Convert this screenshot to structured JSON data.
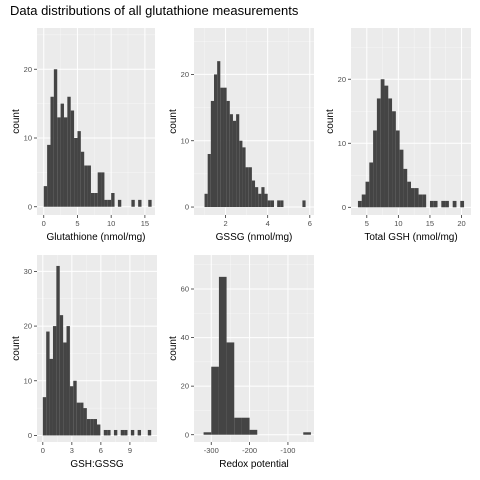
{
  "title": "Data distributions of all glutathione measurements",
  "colors": {
    "panel_bg": "#ebebeb",
    "grid_major": "#ffffff",
    "bar": "#444444",
    "tick_text": "#4d4d4d"
  },
  "chart_data": [
    {
      "type": "bar",
      "subtype": "histogram",
      "xlabel": "Glutathione (nmol/mg)",
      "ylabel": "count",
      "xlim": [
        -1,
        16.5
      ],
      "ylim": [
        -1.2,
        26
      ],
      "x_ticks": [
        0,
        5,
        10,
        15
      ],
      "y_ticks": [
        0,
        10,
        20
      ],
      "bin_width": 0.5,
      "bin_starts": [
        0,
        0.5,
        1,
        1.5,
        2,
        2.5,
        3,
        3.5,
        4,
        4.5,
        5,
        5.5,
        6,
        6.5,
        7,
        7.5,
        8,
        8.5,
        9,
        9.5,
        10,
        10.5,
        11,
        11.5,
        12,
        12.5,
        13,
        13.5,
        14,
        14.5,
        15,
        15.5
      ],
      "counts": [
        3,
        9,
        16,
        20,
        13,
        15,
        13,
        16,
        14,
        10,
        11,
        8,
        6,
        6,
        2,
        2,
        5,
        5,
        1,
        1,
        2,
        0,
        1,
        0,
        0,
        0,
        1,
        0,
        1,
        0,
        0,
        1
      ]
    },
    {
      "type": "bar",
      "subtype": "histogram",
      "xlabel": "GSSG (nmol/mg)",
      "ylabel": "count",
      "xlim": [
        0.5,
        6.2
      ],
      "ylim": [
        -1.2,
        27
      ],
      "x_ticks": [
        2,
        4,
        6
      ],
      "y_ticks": [
        0,
        10,
        20
      ],
      "bin_width": 0.15,
      "bin_starts": [
        1.0,
        1.15,
        1.3,
        1.45,
        1.6,
        1.75,
        1.9,
        2.05,
        2.2,
        2.35,
        2.5,
        2.65,
        2.8,
        2.95,
        3.1,
        3.25,
        3.4,
        3.55,
        3.7,
        3.85,
        4.0,
        4.15,
        4.3,
        4.45,
        4.6,
        4.75,
        4.9,
        5.05,
        5.2,
        5.35,
        5.5,
        5.65
      ],
      "counts": [
        2,
        8,
        16,
        20,
        22,
        18,
        18,
        16,
        14,
        13,
        14,
        10,
        9,
        6,
        6,
        4,
        3,
        2,
        3,
        2,
        1,
        1,
        0,
        1,
        1,
        0,
        0,
        0,
        0,
        0,
        0,
        1
      ]
    },
    {
      "type": "bar",
      "subtype": "histogram",
      "xlabel": "Total GSH (nmol/mg)",
      "ylabel": "count",
      "xlim": [
        2.5,
        21.5
      ],
      "ylim": [
        -1.2,
        28
      ],
      "x_ticks": [
        5,
        10,
        15,
        20
      ],
      "y_ticks": [
        0,
        10,
        20
      ],
      "bin_width": 0.6,
      "bin_starts": [
        3.6,
        4.2,
        4.8,
        5.4,
        6.0,
        6.6,
        7.2,
        7.8,
        8.4,
        9.0,
        9.6,
        10.2,
        10.8,
        11.4,
        12.0,
        12.6,
        13.2,
        13.8,
        14.4,
        15.0,
        15.6,
        16.2,
        16.8,
        17.4,
        18.0,
        18.6,
        19.2,
        19.8,
        20.4
      ],
      "counts": [
        1,
        2,
        4,
        7,
        12,
        17,
        20,
        19,
        17,
        15,
        12,
        9,
        6,
        4,
        3,
        3,
        2,
        2,
        0,
        1,
        1,
        0,
        1,
        1,
        0,
        1,
        0,
        1,
        0
      ]
    },
    {
      "type": "bar",
      "subtype": "histogram",
      "xlabel": "GSH:GSSG",
      "ylabel": "count",
      "xlim": [
        -0.6,
        11.8
      ],
      "ylim": [
        -1.2,
        33
      ],
      "x_ticks": [
        0,
        3,
        6,
        9
      ],
      "y_ticks": [
        0,
        10,
        20,
        30
      ],
      "bin_width": 0.35,
      "bin_starts": [
        0,
        0.35,
        0.7,
        1.05,
        1.4,
        1.75,
        2.1,
        2.45,
        2.8,
        3.15,
        3.5,
        3.85,
        4.2,
        4.55,
        4.9,
        5.25,
        5.6,
        5.95,
        6.3,
        6.65,
        7.0,
        7.35,
        7.7,
        8.05,
        8.4,
        8.75,
        9.1,
        9.45,
        9.8,
        10.15,
        10.5,
        10.85
      ],
      "counts": [
        7,
        19,
        14,
        20,
        31,
        22,
        17,
        20,
        9,
        10,
        6,
        6,
        5,
        3,
        3,
        3,
        2,
        0,
        1,
        1,
        0,
        1,
        0,
        1,
        1,
        0,
        1,
        0,
        1,
        0,
        0,
        1
      ]
    },
    {
      "type": "bar",
      "subtype": "histogram",
      "xlabel": "Redox potential",
      "ylabel": "count",
      "xlim": [
        -345,
        -32
      ],
      "ylim": [
        -3,
        74
      ],
      "x_ticks": [
        -300,
        -200,
        -100
      ],
      "y_ticks": [
        0,
        20,
        40,
        60
      ],
      "bin_width": 20,
      "bin_starts": [
        -320,
        -300,
        -280,
        -260,
        -240,
        -220,
        -200,
        -180,
        -160,
        -140,
        -120,
        -100,
        -80,
        -60
      ],
      "counts": [
        1,
        28,
        65,
        38,
        7,
        7,
        2,
        0,
        0,
        0,
        0,
        0,
        0,
        1
      ]
    }
  ]
}
